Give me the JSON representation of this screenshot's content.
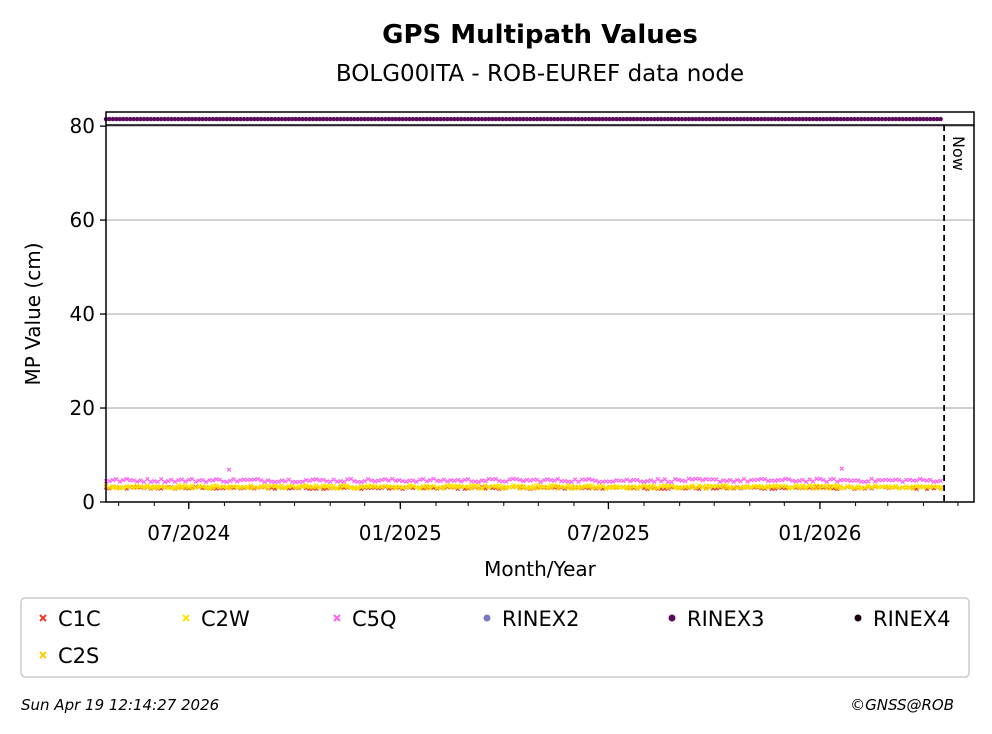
{
  "chart_data": {
    "type": "scatter",
    "title": "GPS Multipath Values",
    "subtitle": "BOLG00ITA - ROB-EUREF data node",
    "xlabel": "Month/Year",
    "ylabel": "MP Value (cm)",
    "x_range": [
      "2024-04-20",
      "2026-05-15"
    ],
    "ylim": [
      0,
      83
    ],
    "y_ticks": [
      0,
      20,
      40,
      60,
      80
    ],
    "x_ticks": [
      {
        "date": "2024-07-01",
        "label": "07/2024"
      },
      {
        "date": "2025-01-01",
        "label": "01/2025"
      },
      {
        "date": "2025-07-01",
        "label": "07/2025"
      },
      {
        "date": "2026-01-01",
        "label": "01/2026"
      }
    ],
    "grid": "y-major",
    "now_marker": {
      "date": "2026-04-19",
      "label": "Now"
    },
    "data_start": "2024-04-20",
    "data_end": "2026-04-17",
    "series": [
      {
        "name": "C1C",
        "marker": "x",
        "color": "#e8392b",
        "baseline": 3.0,
        "spread": 0.25,
        "spikes": []
      },
      {
        "name": "C2W",
        "marker": "x",
        "color": "#ffe600",
        "baseline": 3.3,
        "spread": 0.3,
        "spikes": []
      },
      {
        "name": "C5Q",
        "marker": "x",
        "color": "#ff5ff5",
        "baseline": 4.6,
        "spread": 0.35,
        "spikes": [
          {
            "date": "2024-08-05",
            "value": 6.9
          },
          {
            "date": "2026-01-20",
            "value": 7.1
          }
        ]
      },
      {
        "name": "RINEX2",
        "marker": "dot",
        "color": "#7b78c4",
        "baseline": null,
        "spread": 0,
        "spikes": []
      },
      {
        "name": "RINEX3",
        "marker": "dot",
        "color": "#5c0b5c",
        "baseline": 81.5,
        "spread": 0,
        "spikes": []
      },
      {
        "name": "RINEX4",
        "marker": "dot",
        "color": "#1a0010",
        "baseline": null,
        "spread": 0,
        "spikes": []
      },
      {
        "name": "C2S",
        "marker": "x",
        "color": "#ffcc00",
        "baseline": 3.1,
        "spread": 0.3,
        "spikes": []
      }
    ]
  },
  "footer": {
    "timestamp": "Sun Apr 19 12:14:27 2026",
    "copyright": "©GNSS@ROB"
  }
}
